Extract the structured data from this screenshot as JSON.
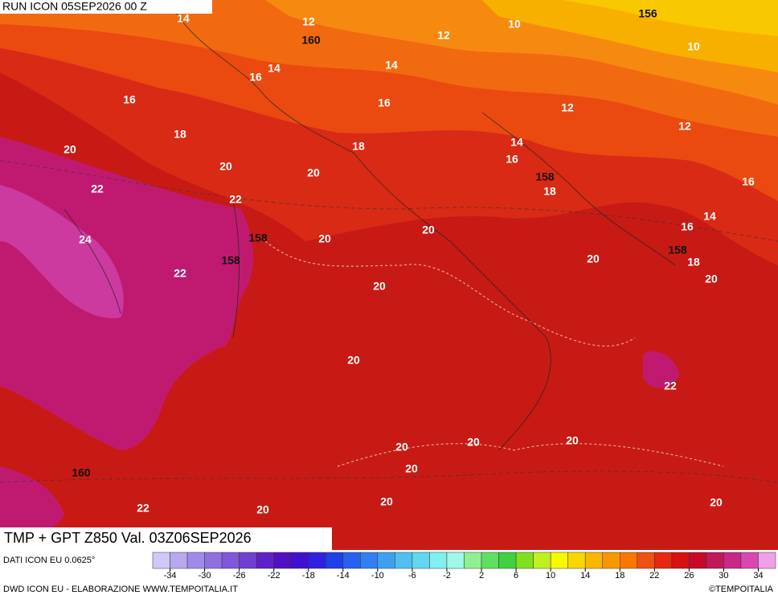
{
  "header": {
    "run": "RUN ICON 05SEP2026 00 Z"
  },
  "footer": {
    "title": "TMP + GPT Z850 Val. 03Z06SEP2026",
    "source": "DATI ICON EU 0.0625°",
    "credit": "DWD ICON EU - ELABORAZIONE WWW.TEMPOITALIA.IT",
    "copyright": "©TEMPOITALIA"
  },
  "temperature_labels": [
    14,
    12,
    12,
    10,
    10,
    14,
    14,
    16,
    16,
    16,
    12,
    12,
    18,
    18,
    14,
    16,
    20,
    20,
    20,
    18,
    16,
    22,
    22,
    14,
    16,
    24,
    20,
    20,
    20,
    18,
    22,
    20,
    20,
    20,
    22,
    20,
    20,
    20,
    20,
    22,
    20,
    20,
    20
  ],
  "geopotential_labels": [
    156,
    160,
    158,
    158,
    158,
    158,
    160
  ],
  "colorbar": {
    "ticks": [
      -34,
      -30,
      -26,
      -22,
      -18,
      -14,
      -10,
      -6,
      -2,
      2,
      6,
      10,
      14,
      18,
      22,
      26,
      30,
      34
    ],
    "range": [
      -36,
      36
    ],
    "colors": [
      "#d0c8f8",
      "#b8a8f0",
      "#a08ce8",
      "#9070e0",
      "#8058d8",
      "#7040d0",
      "#6020c8",
      "#5010c0",
      "#4010d0",
      "#3020e0",
      "#2040e8",
      "#2860f0",
      "#3080f0",
      "#40a0f0",
      "#50c0f0",
      "#60d8f0",
      "#80f0f0",
      "#a0f8e8",
      "#90f090",
      "#60e060",
      "#40d040",
      "#80e020",
      "#c0f020",
      "#f8f800",
      "#f8d800",
      "#f8b800",
      "#f89800",
      "#f87800",
      "#f05010",
      "#e82810",
      "#d81010",
      "#c80828",
      "#c01858",
      "#c82888",
      "#d848b0",
      "#f0a0e8"
    ]
  }
}
